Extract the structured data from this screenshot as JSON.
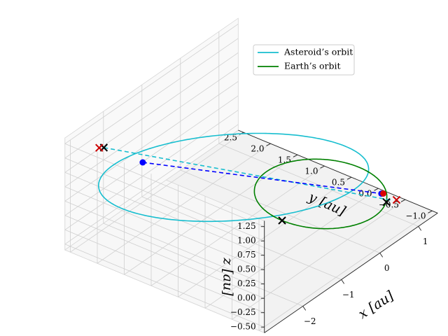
{
  "chart_data": {
    "type": "line",
    "projection": "3d",
    "title": "",
    "axes": {
      "x": {
        "label": "x [au]",
        "range": [
          -3,
          1.5
        ],
        "ticks": [
          -2,
          -1,
          0,
          1
        ],
        "tick_labels": [
          "−2",
          "−1",
          "0",
          "1"
        ]
      },
      "y": {
        "label": "y [au]",
        "range": [
          -1.1,
          2.6
        ],
        "ticks": [
          -1.0,
          -0.5,
          0.0,
          0.5,
          1.0,
          1.5,
          2.0,
          2.5
        ],
        "tick_labels": [
          "−1.0",
          "−0.5",
          "0.0",
          "0.5",
          "1.0",
          "1.5",
          "2.0",
          "2.5"
        ]
      },
      "z": {
        "label": "z [au]",
        "range": [
          -0.6,
          1.35
        ],
        "ticks": [
          -0.5,
          -0.25,
          0.0,
          0.25,
          0.5,
          0.75,
          1.0,
          1.25
        ],
        "tick_labels": [
          "−0.50",
          "−0.25",
          "0.00",
          "0.25",
          "0.50",
          "0.75",
          "1.00",
          "1.25"
        ]
      }
    },
    "grid": true,
    "legend": {
      "position": "top-right",
      "entries": [
        {
          "label": "Asteroid’s orbit",
          "color": "#17becf"
        },
        {
          "label": "Earth’s orbit",
          "color": "#008000"
        }
      ]
    },
    "series": [
      {
        "name": "Asteroid’s orbit",
        "kind": "ellipse",
        "color": "#17becf",
        "center": [
          -1.0,
          0.9,
          0.4
        ],
        "axis_u": [
          1.57,
          -1.07,
          -0.55
        ],
        "axis_v": [
          -0.3,
          1.0,
          -0.98
        ]
      },
      {
        "name": "Earth’s orbit",
        "kind": "ellipse",
        "color": "#008000",
        "center": [
          0,
          0,
          0
        ],
        "axis_u": [
          1,
          0,
          0
        ],
        "axis_v": [
          0,
          1,
          0
        ]
      }
    ],
    "markers": [
      {
        "kind": "x",
        "color": "#000000",
        "position": [
          -1.0,
          0.0,
          0.0
        ]
      },
      {
        "kind": "x",
        "color": "#000000",
        "position": [
          0.45,
          -0.9,
          0.0
        ]
      },
      {
        "kind": "x",
        "color": "#cc0000",
        "position": [
          0.6,
          -0.98,
          0.0
        ]
      },
      {
        "kind": "x",
        "color": "#000000",
        "position": [
          -2.2,
          2.45,
          0.87
        ]
      },
      {
        "kind": "x",
        "color": "#cc0000",
        "position": [
          -2.25,
          2.5,
          0.87
        ]
      },
      {
        "kind": "dot",
        "color": "#0000ff",
        "position": [
          -1.4,
          2.3,
          0.3
        ]
      },
      {
        "kind": "dot",
        "color": "#0000ff",
        "position": [
          0.6,
          -0.7,
          0.0
        ]
      },
      {
        "kind": "dot",
        "color": "#dd0000",
        "position": [
          0.62,
          -0.72,
          0.0
        ]
      }
    ],
    "segments": [
      {
        "style": "dashed",
        "color": "#17becf",
        "from": [
          -2.2,
          2.45,
          0.87
        ],
        "to": [
          0.55,
          -0.95,
          0.0
        ]
      },
      {
        "style": "dashed",
        "color": "#0000ff",
        "from": [
          -1.4,
          2.3,
          0.3
        ],
        "to": [
          0.6,
          -0.7,
          0.0
        ]
      }
    ]
  }
}
